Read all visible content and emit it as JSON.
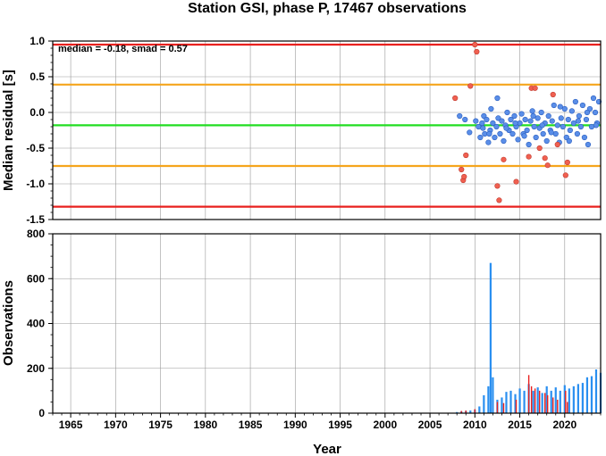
{
  "title": "Station GSI, phase P, 17467 observations",
  "xlabel": "Year",
  "top": {
    "ylabel": "Median residual [s]",
    "annotation": "median = -0.18, smad = 0.57",
    "ylim": [
      -1.5,
      1.0
    ],
    "yticks": [
      1.0,
      0.5,
      0.0,
      -0.5,
      -1.0,
      -1.5
    ],
    "ytick_labels": [
      "1.0",
      "0.5",
      "0.0",
      "-0.5",
      "-1.0",
      "-1.5"
    ],
    "lines": [
      {
        "y": 0.95,
        "color": "#e8201e"
      },
      {
        "y": 0.39,
        "color": "#f5a51c"
      },
      {
        "y": -0.18,
        "color": "#22dd22"
      },
      {
        "y": -0.75,
        "color": "#f5a51c"
      },
      {
        "y": -1.32,
        "color": "#e8201e"
      }
    ],
    "blue_color": "#5a8ee8",
    "red_color": "#f06050"
  },
  "bottom": {
    "ylabel": "Observations",
    "ylim": [
      0,
      800
    ],
    "yticks": [
      0,
      200,
      400,
      600,
      800
    ],
    "ytick_labels": [
      "0",
      "200",
      "400",
      "600",
      "800"
    ],
    "blue_color": "#2a8ff0",
    "red_color": "#e8201e"
  },
  "chart_data": [
    {
      "type": "scatter",
      "title": "Station GSI, phase P, 17467 observations",
      "xlabel": "Year",
      "ylabel": "Median residual [s]",
      "xlim": [
        1963,
        2024
      ],
      "ylim": [
        -1.5,
        1.0
      ],
      "xticks": [
        1965,
        1970,
        1975,
        1980,
        1985,
        1990,
        1995,
        2000,
        2005,
        2010,
        2015,
        2020
      ],
      "grid": true,
      "annotation": "median = -0.18, smad = 0.57",
      "series": [
        {
          "color": "#5a8ee8",
          "x": [
            2008.3,
            2008.9,
            2009.4,
            2010.1,
            2010.4,
            2010.6,
            2010.8,
            2011.0,
            2011.1,
            2011.3,
            2011.5,
            2011.7,
            2011.8,
            2012.0,
            2012.2,
            2012.4,
            2012.6,
            2012.8,
            2013.0,
            2013.2,
            2013.4,
            2013.6,
            2013.8,
            2014.0,
            2014.2,
            2014.4,
            2014.6,
            2014.8,
            2015.0,
            2015.2,
            2015.4,
            2015.6,
            2015.8,
            2016.0,
            2016.2,
            2016.4,
            2016.6,
            2016.8,
            2017.0,
            2017.2,
            2017.4,
            2017.6,
            2017.8,
            2018.0,
            2018.2,
            2018.4,
            2018.6,
            2018.8,
            2019.0,
            2019.2,
            2019.4,
            2019.6,
            2019.8,
            2020.0,
            2020.2,
            2020.4,
            2020.6,
            2020.8,
            2021.0,
            2021.2,
            2021.4,
            2021.6,
            2021.8,
            2022.0,
            2022.2,
            2022.4,
            2022.6,
            2022.8,
            2023.0,
            2023.2,
            2023.4,
            2023.6,
            2023.8,
            2010.9,
            2011.6,
            2012.5,
            2013.5,
            2014.5,
            2015.5,
            2016.5,
            2017.5,
            2018.5,
            2019.5,
            2020.5,
            2021.5,
            2022.5,
            2023.5
          ],
          "y": [
            -0.05,
            -0.1,
            -0.28,
            -0.12,
            -0.2,
            -0.35,
            -0.15,
            -0.05,
            -0.3,
            -0.1,
            -0.42,
            -0.25,
            0.05,
            -0.15,
            -0.35,
            -0.2,
            -0.08,
            -0.3,
            -0.12,
            -0.4,
            -0.18,
            0.0,
            -0.25,
            -0.1,
            -0.3,
            -0.05,
            -0.2,
            -0.38,
            -0.15,
            -0.02,
            -0.3,
            -0.1,
            -0.25,
            -0.45,
            -0.12,
            0.02,
            -0.2,
            -0.35,
            -0.08,
            -0.22,
            0.0,
            -0.3,
            -0.15,
            -0.4,
            -0.05,
            -0.25,
            -0.12,
            0.1,
            -0.3,
            -0.18,
            -0.42,
            -0.08,
            -0.2,
            0.05,
            -0.35,
            -0.1,
            -0.25,
            0.02,
            -0.15,
            0.15,
            -0.3,
            -0.05,
            -0.2,
            0.1,
            -0.35,
            -0.1,
            -0.45,
            0.05,
            -0.2,
            0.2,
            0.0,
            -0.15,
            0.15,
            -0.22,
            -0.3,
            0.2,
            -0.22,
            -0.15,
            -0.33,
            -0.05,
            -0.18,
            -0.28,
            0.08,
            -0.4,
            -0.12,
            0.0,
            -0.18
          ]
        },
        {
          "color": "#f06050",
          "x": [
            2007.8,
            2008.5,
            2008.7,
            2008.8,
            2009.0,
            2009.5,
            2010.0,
            2010.2,
            2012.5,
            2012.7,
            2013.2,
            2014.6,
            2016.0,
            2016.3,
            2016.7,
            2017.2,
            2017.8,
            2018.1,
            2018.7,
            2019.2,
            2020.1,
            2020.3
          ],
          "y": [
            0.2,
            -0.8,
            -0.95,
            -0.9,
            -0.6,
            0.37,
            0.95,
            0.85,
            -1.03,
            -1.23,
            -0.66,
            -0.97,
            -0.62,
            0.34,
            0.34,
            -0.5,
            -0.64,
            -0.74,
            0.25,
            -0.45,
            -0.88,
            -0.7
          ]
        }
      ]
    },
    {
      "type": "bar",
      "xlabel": "Year",
      "ylabel": "Observations",
      "xlim": [
        1963,
        2024
      ],
      "ylim": [
        0,
        800
      ],
      "xticks": [
        1965,
        1970,
        1975,
        1980,
        1985,
        1990,
        1995,
        2000,
        2005,
        2010,
        2015,
        2020
      ],
      "grid": true,
      "series": [
        {
          "color": "#2a8ff0",
          "x": [
            2008.0,
            2008.5,
            2009.0,
            2009.5,
            2010.0,
            2010.5,
            2011.0,
            2011.5,
            2011.75,
            2012.0,
            2012.5,
            2013.0,
            2013.5,
            2014.0,
            2014.5,
            2015.0,
            2015.5,
            2016.0,
            2016.5,
            2017.0,
            2017.5,
            2018.0,
            2018.5,
            2019.0,
            2019.5,
            2020.0,
            2020.5,
            2021.0,
            2021.5,
            2022.0,
            2022.5,
            2023.0,
            2023.5,
            2024.0
          ],
          "values": [
            5,
            8,
            10,
            12,
            15,
            30,
            80,
            120,
            670,
            160,
            60,
            70,
            95,
            100,
            85,
            110,
            100,
            130,
            100,
            115,
            90,
            120,
            100,
            115,
            100,
            125,
            110,
            120,
            130,
            135,
            160,
            165,
            195,
            180
          ]
        },
        {
          "color": "#e8201e",
          "x": [
            2008.5,
            2009.0,
            2010.0,
            2012.5,
            2013.2,
            2014.6,
            2016.0,
            2016.3,
            2016.7,
            2017.2,
            2017.8,
            2018.1,
            2018.7,
            2019.2,
            2020.1,
            2020.3
          ],
          "values": [
            10,
            12,
            18,
            50,
            45,
            60,
            170,
            120,
            110,
            100,
            90,
            80,
            70,
            60,
            100,
            50
          ]
        }
      ]
    }
  ]
}
